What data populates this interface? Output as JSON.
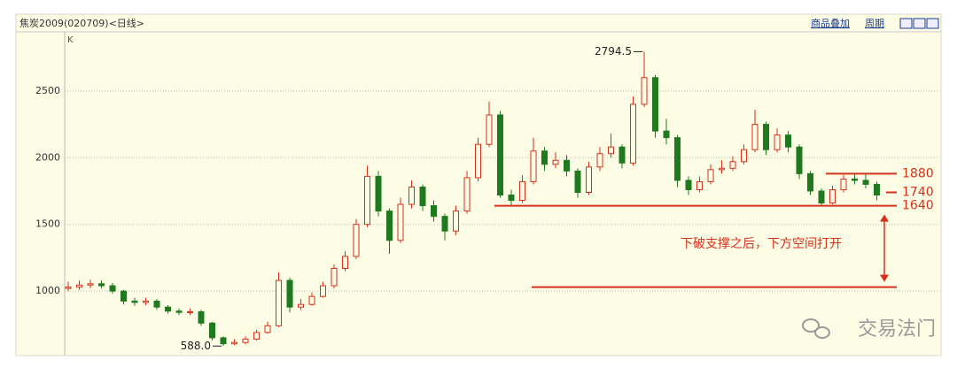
{
  "chart_data": {
    "type": "candlestick",
    "title": "焦炭2009(020709)<日线>",
    "toolbar": [
      "商品叠加",
      "周期"
    ],
    "panel_label": "K",
    "ylim": [
      530,
      2930
    ],
    "yticks": [
      1000,
      1500,
      2000,
      2500
    ],
    "grid": true,
    "up_color": "#d8301c",
    "down_color": "#1f7a1f",
    "series": {
      "open": [
        1020,
        1030,
        1045,
        1055,
        1040,
        1000,
        925,
        915,
        925,
        880,
        850,
        840,
        845,
        760,
        650,
        605,
        615,
        640,
        690,
        740,
        1080,
        880,
        900,
        960,
        1040,
        1170,
        1260,
        1500,
        1860,
        1600,
        1380,
        1650,
        1780,
        1640,
        1560,
        1450,
        1600,
        1850,
        2100,
        2320,
        1720,
        1680,
        1820,
        2050,
        1950,
        1980,
        1900,
        1740,
        1930,
        2030,
        2080,
        1960,
        2400,
        2600,
        2200,
        2150,
        1830,
        1760,
        1820,
        1910,
        1920,
        1970,
        2060,
        2250,
        2060,
        2170,
        2080,
        1880,
        1750,
        1660,
        1760,
        1840,
        1830,
        1800
      ],
      "high": [
        1070,
        1080,
        1085,
        1080,
        1060,
        1010,
        950,
        950,
        940,
        895,
        870,
        870,
        860,
        770,
        660,
        640,
        660,
        710,
        770,
        1140,
        1100,
        940,
        990,
        1070,
        1200,
        1300,
        1540,
        1940,
        1900,
        1620,
        1700,
        1830,
        1800,
        1680,
        1580,
        1640,
        1900,
        2150,
        2420,
        2350,
        1760,
        1870,
        2150,
        2080,
        2040,
        2020,
        1920,
        1970,
        2080,
        2180,
        2100,
        2460,
        2794.5,
        2620,
        2290,
        2170,
        1860,
        1860,
        1950,
        1980,
        2010,
        2100,
        2360,
        2270,
        2220,
        2200,
        2100,
        1900,
        1770,
        1790,
        1870,
        1880,
        1880,
        1820
      ],
      "low": [
        1000,
        1010,
        1020,
        1020,
        980,
        900,
        890,
        895,
        860,
        830,
        820,
        820,
        740,
        630,
        588,
        595,
        600,
        630,
        680,
        730,
        840,
        860,
        890,
        950,
        1020,
        1150,
        1240,
        1480,
        1560,
        1280,
        1360,
        1620,
        1600,
        1520,
        1380,
        1420,
        1580,
        1820,
        2080,
        1700,
        1640,
        1660,
        1800,
        1900,
        1920,
        1860,
        1700,
        1720,
        1900,
        2000,
        1920,
        1940,
        2380,
        2150,
        2100,
        1780,
        1720,
        1740,
        1800,
        1880,
        1900,
        1950,
        2040,
        2020,
        2040,
        2040,
        1840,
        1720,
        1640,
        1650,
        1740,
        1800,
        1770,
        1680
      ],
      "close": [
        1030,
        1045,
        1055,
        1040,
        1000,
        925,
        915,
        925,
        880,
        850,
        840,
        845,
        760,
        650,
        605,
        615,
        640,
        690,
        740,
        1080,
        880,
        900,
        960,
        1040,
        1170,
        1260,
        1500,
        1860,
        1600,
        1380,
        1650,
        1780,
        1640,
        1560,
        1450,
        1600,
        1850,
        2100,
        2320,
        1720,
        1680,
        1820,
        2050,
        1950,
        1980,
        1900,
        1740,
        1930,
        2030,
        2080,
        1960,
        2400,
        2600,
        2200,
        2150,
        1830,
        1760,
        1820,
        1910,
        1920,
        1970,
        2060,
        2250,
        2060,
        2170,
        2080,
        1880,
        1750,
        1660,
        1760,
        1840,
        1830,
        1800,
        1720
      ]
    },
    "extremes": {
      "high": 2794.5,
      "low": {
        "value": 588,
        "label": "588.0"
      }
    },
    "levels": [
      1880,
      1740,
      1640
    ],
    "level_color": "#d8301c",
    "target_line": 1030,
    "annotation": "下破支撑之后，下方空间打开",
    "watermark": "交易法门"
  }
}
